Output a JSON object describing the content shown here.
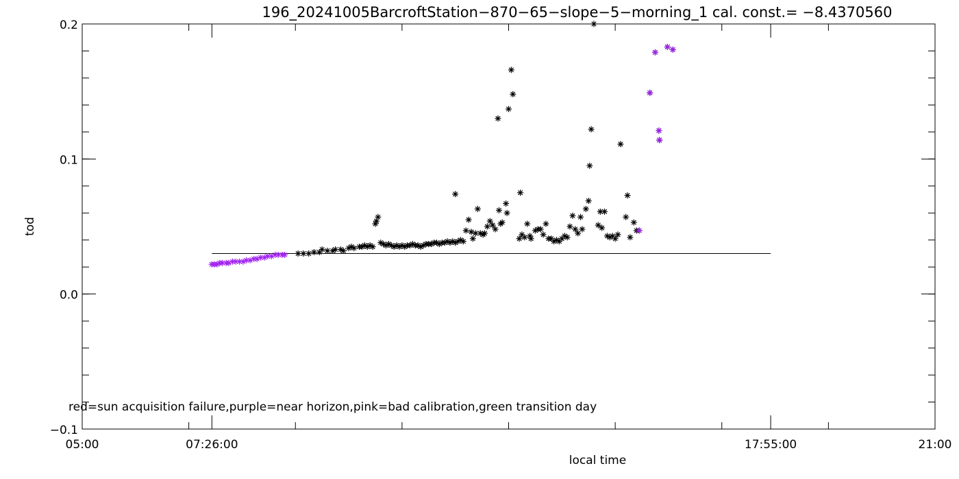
{
  "chart_data": {
    "type": "scatter",
    "title": "196_20241005BarcroftStation−870−65−slope−5−morning_1 cal. const.= −8.4370560",
    "xlabel": "local time",
    "ylabel": "tod",
    "xlim": [
      5.0,
      21.0
    ],
    "ylim": [
      -0.1,
      0.2
    ],
    "x_tick_labels": [
      "05:00",
      "07:26:00",
      "17:55:00",
      "21:00"
    ],
    "x_tick_values": [
      5.0,
      7.4333,
      17.9167,
      21.0
    ],
    "y_tick_labels": [
      "−0.1",
      "0.0",
      "0.1",
      "0.2"
    ],
    "y_tick_values": [
      -0.1,
      0.0,
      0.1,
      0.2
    ],
    "y_minor_step": 0.02,
    "x_minor_step": 2.0,
    "annotation": "red=sun acquisition failure,purple=near horizon,pink=bad calibration,green transition day",
    "colors": {
      "frame": "#000000",
      "normal": "#000000",
      "near_horizon": "#a020f0"
    },
    "reference_line": {
      "x": [
        7.4333,
        17.9167
      ],
      "y": 0.03
    },
    "series": [
      {
        "category": "normal",
        "marker": "asterisk",
        "points": [
          [
            9.05,
            0.03
          ],
          [
            9.15,
            0.03
          ],
          [
            9.25,
            0.03
          ],
          [
            9.35,
            0.031
          ],
          [
            9.45,
            0.031
          ],
          [
            9.5,
            0.033
          ],
          [
            9.6,
            0.032
          ],
          [
            9.7,
            0.032
          ],
          [
            9.75,
            0.033
          ],
          [
            9.85,
            0.033
          ],
          [
            9.9,
            0.032
          ],
          [
            10.0,
            0.034
          ],
          [
            10.05,
            0.035
          ],
          [
            10.1,
            0.034
          ],
          [
            10.2,
            0.035
          ],
          [
            10.25,
            0.035
          ],
          [
            10.3,
            0.036
          ],
          [
            10.35,
            0.035
          ],
          [
            10.4,
            0.036
          ],
          [
            10.45,
            0.035
          ],
          [
            10.5,
            0.052
          ],
          [
            10.52,
            0.054
          ],
          [
            10.55,
            0.057
          ],
          [
            10.6,
            0.038
          ],
          [
            10.65,
            0.037
          ],
          [
            10.7,
            0.036
          ],
          [
            10.75,
            0.037
          ],
          [
            10.8,
            0.036
          ],
          [
            10.85,
            0.035
          ],
          [
            10.9,
            0.036
          ],
          [
            10.95,
            0.035
          ],
          [
            11.0,
            0.036
          ],
          [
            11.05,
            0.035
          ],
          [
            11.1,
            0.036
          ],
          [
            11.15,
            0.036
          ],
          [
            11.2,
            0.037
          ],
          [
            11.25,
            0.036
          ],
          [
            11.3,
            0.036
          ],
          [
            11.35,
            0.035
          ],
          [
            11.4,
            0.036
          ],
          [
            11.45,
            0.037
          ],
          [
            11.5,
            0.037
          ],
          [
            11.55,
            0.037
          ],
          [
            11.6,
            0.038
          ],
          [
            11.65,
            0.038
          ],
          [
            11.7,
            0.037
          ],
          [
            11.75,
            0.038
          ],
          [
            11.8,
            0.038
          ],
          [
            11.85,
            0.039
          ],
          [
            11.9,
            0.038
          ],
          [
            11.95,
            0.039
          ],
          [
            12.0,
            0.038
          ],
          [
            12.05,
            0.039
          ],
          [
            12.1,
            0.04
          ],
          [
            12.15,
            0.039
          ],
          [
            12.2,
            0.047
          ],
          [
            12.25,
            0.055
          ],
          [
            12.3,
            0.046
          ],
          [
            12.33,
            0.041
          ],
          [
            12.38,
            0.045
          ],
          [
            12.42,
            0.063
          ],
          [
            12.47,
            0.045
          ],
          [
            12.52,
            0.044
          ],
          [
            12.55,
            0.045
          ],
          [
            12.6,
            0.05
          ],
          [
            12.65,
            0.054
          ],
          [
            12.7,
            0.051
          ],
          [
            12.75,
            0.048
          ],
          [
            12.8,
            0.13
          ],
          [
            12.82,
            0.062
          ],
          [
            12.85,
            0.052
          ],
          [
            12.88,
            0.053
          ],
          [
            12.95,
            0.067
          ],
          [
            12.97,
            0.06
          ],
          [
            13.0,
            0.137
          ],
          [
            13.05,
            0.166
          ],
          [
            13.08,
            0.148
          ],
          [
            13.2,
            0.041
          ],
          [
            13.25,
            0.044
          ],
          [
            13.3,
            0.042
          ],
          [
            13.35,
            0.052
          ],
          [
            13.4,
            0.043
          ],
          [
            13.42,
            0.041
          ],
          [
            13.5,
            0.047
          ],
          [
            13.55,
            0.048
          ],
          [
            13.6,
            0.048
          ],
          [
            13.65,
            0.044
          ],
          [
            13.7,
            0.052
          ],
          [
            13.75,
            0.041
          ],
          [
            13.8,
            0.041
          ],
          [
            13.85,
            0.039
          ],
          [
            13.9,
            0.04
          ],
          [
            13.95,
            0.039
          ],
          [
            14.0,
            0.041
          ],
          [
            14.05,
            0.043
          ],
          [
            14.1,
            0.042
          ],
          [
            14.15,
            0.05
          ],
          [
            14.2,
            0.058
          ],
          [
            14.25,
            0.048
          ],
          [
            14.3,
            0.045
          ],
          [
            14.35,
            0.057
          ],
          [
            14.38,
            0.048
          ],
          [
            14.45,
            0.063
          ],
          [
            14.5,
            0.069
          ],
          [
            14.52,
            0.095
          ],
          [
            14.55,
            0.122
          ],
          [
            14.6,
            0.2
          ],
          [
            14.68,
            0.051
          ],
          [
            14.72,
            0.061
          ],
          [
            14.75,
            0.049
          ],
          [
            14.8,
            0.061
          ],
          [
            14.85,
            0.043
          ],
          [
            14.9,
            0.042
          ],
          [
            14.95,
            0.043
          ],
          [
            15.0,
            0.041
          ],
          [
            15.05,
            0.044
          ],
          [
            15.1,
            0.111
          ],
          [
            15.2,
            0.057
          ],
          [
            15.23,
            0.073
          ],
          [
            15.28,
            0.042
          ],
          [
            15.35,
            0.053
          ],
          [
            15.4,
            0.047
          ],
          [
            12.0,
            0.074
          ],
          [
            13.22,
            0.075
          ]
        ]
      },
      {
        "category": "near_horizon",
        "marker": "asterisk",
        "points": [
          [
            7.43,
            0.022
          ],
          [
            7.48,
            0.022
          ],
          [
            7.53,
            0.022
          ],
          [
            7.58,
            0.023
          ],
          [
            7.63,
            0.023
          ],
          [
            7.7,
            0.023
          ],
          [
            7.75,
            0.023
          ],
          [
            7.82,
            0.024
          ],
          [
            7.88,
            0.024
          ],
          [
            7.95,
            0.024
          ],
          [
            8.02,
            0.024
          ],
          [
            8.08,
            0.025
          ],
          [
            8.15,
            0.025
          ],
          [
            8.22,
            0.026
          ],
          [
            8.28,
            0.026
          ],
          [
            8.35,
            0.027
          ],
          [
            8.42,
            0.027
          ],
          [
            8.48,
            0.028
          ],
          [
            8.55,
            0.028
          ],
          [
            8.62,
            0.029
          ],
          [
            8.68,
            0.029
          ],
          [
            8.75,
            0.029
          ],
          [
            8.8,
            0.029
          ],
          [
            15.45,
            0.047
          ],
          [
            15.65,
            0.149
          ],
          [
            15.75,
            0.179
          ],
          [
            15.82,
            0.121
          ],
          [
            15.83,
            0.114
          ],
          [
            15.98,
            0.183
          ],
          [
            16.08,
            0.181
          ]
        ]
      }
    ]
  }
}
